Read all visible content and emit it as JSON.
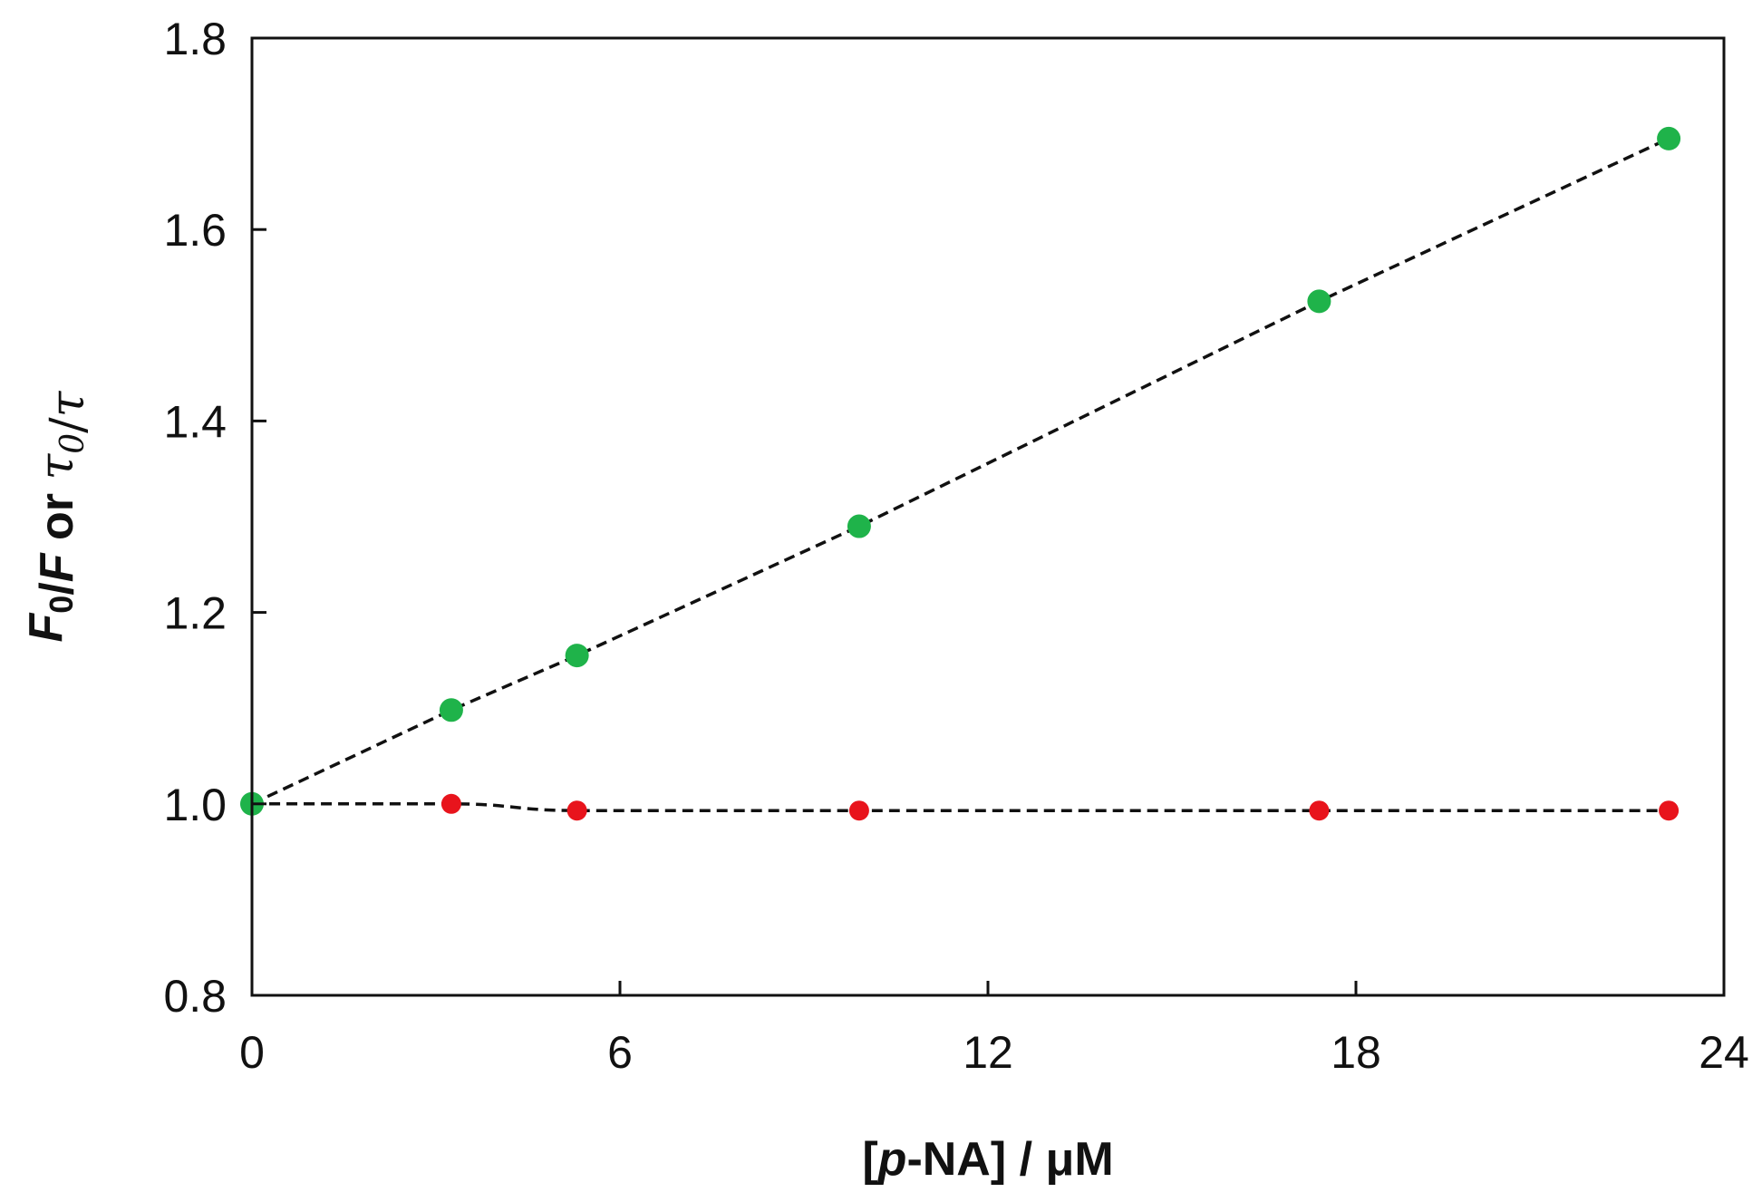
{
  "chart_data": {
    "type": "scatter",
    "xlabel": {
      "parts": [
        {
          "text": "[",
          "italic": false,
          "sub": false
        },
        {
          "text": "p",
          "italic": true,
          "sub": false
        },
        {
          "text": "-NA] / μM",
          "italic": false,
          "sub": false
        }
      ]
    },
    "ylabel": {
      "parts": [
        {
          "text": "F",
          "italic": true,
          "sub": false,
          "serif": false
        },
        {
          "text": "0",
          "italic": false,
          "sub": true,
          "serif": false
        },
        {
          "text": "/",
          "italic": false,
          "sub": false,
          "serif": false
        },
        {
          "text": "F",
          "italic": true,
          "sub": false,
          "serif": false
        },
        {
          "text": " or ",
          "italic": false,
          "sub": false,
          "serif": false
        },
        {
          "text": "τ",
          "italic": true,
          "sub": false,
          "serif": true
        },
        {
          "text": "0",
          "italic": true,
          "sub": true,
          "serif": true
        },
        {
          "text": "/",
          "italic": false,
          "sub": false,
          "serif": true
        },
        {
          "text": "τ",
          "italic": true,
          "sub": false,
          "serif": true
        }
      ]
    },
    "xlim": [
      0,
      24
    ],
    "ylim": [
      0.8,
      1.8
    ],
    "xticks": [
      0,
      6,
      12,
      18,
      24
    ],
    "yticks": [
      0.8,
      1.0,
      1.2,
      1.4,
      1.6,
      1.8
    ],
    "xtick_labels": [
      "0",
      "6",
      "12",
      "18",
      "24"
    ],
    "ytick_labels": [
      "0.8",
      "1.0",
      "1.2",
      "1.4",
      "1.6",
      "1.8"
    ],
    "grid": false,
    "legend": "none",
    "series": [
      {
        "color": "#e8141c",
        "marker": "circle",
        "line": "dashed",
        "line_color": "#111111",
        "x": [
          0,
          3.25,
          5.3,
          9.9,
          17.4,
          23.1
        ],
        "y": [
          1.0,
          1.0,
          0.993,
          0.993,
          0.993,
          0.993
        ]
      },
      {
        "color": "#1fb34a",
        "marker": "circle",
        "line": "dashed",
        "line_color": "#111111",
        "x": [
          0,
          3.25,
          5.3,
          9.9,
          17.4,
          23.1
        ],
        "y": [
          1.0,
          1.098,
          1.155,
          1.29,
          1.525,
          1.695
        ]
      }
    ]
  }
}
